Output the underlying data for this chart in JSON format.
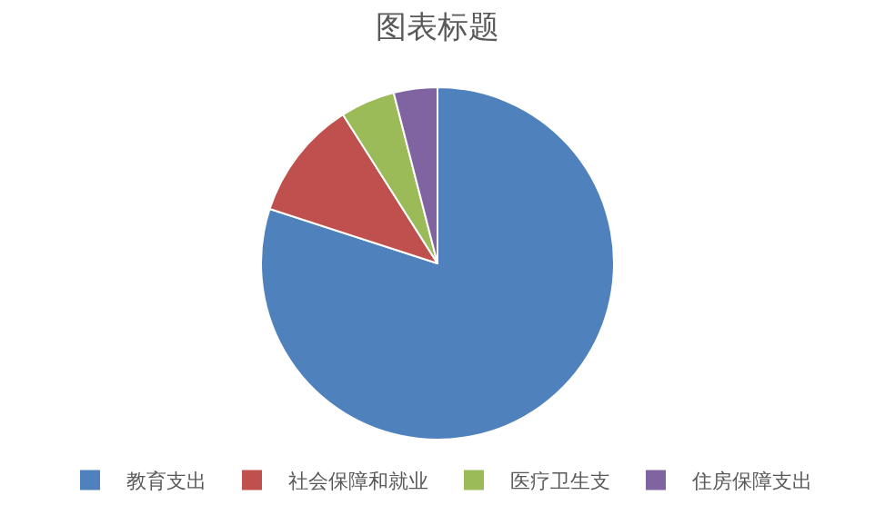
{
  "chart_data": {
    "type": "pie",
    "title": "图表标题",
    "categories": [
      "教育支出",
      "社会保障和就业",
      "医疗卫生支",
      "住房保障支出"
    ],
    "values": [
      80,
      11,
      5,
      4
    ],
    "colors": [
      "#4f81bd",
      "#c0504d",
      "#9bbb59",
      "#8064a2"
    ],
    "legend": "bottom"
  }
}
